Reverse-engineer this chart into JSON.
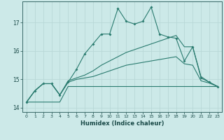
{
  "xlabel": "Humidex (Indice chaleur)",
  "x_values": [
    0,
    1,
    2,
    3,
    4,
    5,
    6,
    7,
    8,
    9,
    10,
    11,
    12,
    13,
    14,
    15,
    16,
    17,
    18,
    19,
    20,
    21,
    22,
    23
  ],
  "line1": [
    14.2,
    14.6,
    14.85,
    14.85,
    14.45,
    14.9,
    15.35,
    15.9,
    16.25,
    16.6,
    16.6,
    17.5,
    17.05,
    16.95,
    17.05,
    17.55,
    16.6,
    16.5,
    16.45,
    15.65,
    16.15,
    15.05,
    14.9,
    14.75
  ],
  "line2": [
    14.2,
    14.6,
    14.85,
    14.85,
    14.45,
    14.95,
    15.05,
    15.15,
    15.3,
    15.5,
    15.65,
    15.8,
    15.95,
    16.05,
    16.15,
    16.25,
    16.35,
    16.45,
    16.55,
    16.15,
    16.15,
    15.1,
    14.9,
    14.75
  ],
  "line3": [
    14.2,
    14.6,
    14.85,
    14.85,
    14.45,
    14.9,
    15.0,
    15.05,
    15.1,
    15.2,
    15.3,
    15.4,
    15.5,
    15.55,
    15.6,
    15.65,
    15.7,
    15.75,
    15.8,
    15.55,
    15.5,
    14.95,
    14.87,
    14.75
  ],
  "line4": [
    14.2,
    14.2,
    14.2,
    14.2,
    14.2,
    14.75,
    14.75,
    14.75,
    14.75,
    14.75,
    14.75,
    14.75,
    14.75,
    14.75,
    14.75,
    14.75,
    14.75,
    14.75,
    14.75,
    14.75,
    14.75,
    14.75,
    14.75,
    14.75
  ],
  "line_color": "#2a7b6f",
  "bg_color": "#cce9e8",
  "grid_color": "#b8d8d7",
  "ylim": [
    13.85,
    17.75
  ],
  "yticks": [
    14,
    15,
    16,
    17
  ],
  "xticks": [
    0,
    1,
    2,
    3,
    4,
    5,
    6,
    7,
    8,
    9,
    10,
    11,
    12,
    13,
    14,
    15,
    16,
    17,
    18,
    19,
    20,
    21,
    22,
    23
  ]
}
